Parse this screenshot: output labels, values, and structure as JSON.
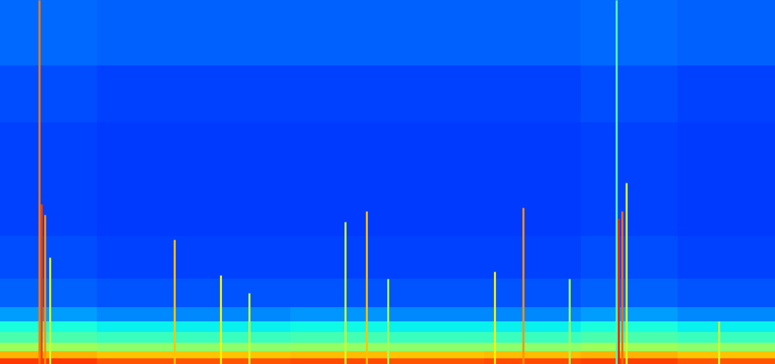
{
  "chart_data": {
    "type": "heatmap",
    "color": "jet",
    "tick_labels": false,
    "xlim": [
      0,
      1089
    ],
    "ylim": [
      0,
      512
    ],
    "color_range": [
      0,
      100
    ],
    "x_edges": [
      0,
      136,
      272,
      408,
      544,
      680,
      816,
      952,
      1089
    ],
    "y_edges": [
      0,
      8,
      18,
      30,
      45,
      60,
      80,
      120,
      180,
      260,
      340,
      420,
      512
    ],
    "cells": [
      [
        85,
        82,
        82,
        83,
        82,
        83,
        84,
        82
      ],
      [
        72,
        70,
        70,
        71,
        70,
        71,
        72,
        70
      ],
      [
        54,
        52,
        52,
        53,
        52,
        52,
        54,
        52
      ],
      [
        44,
        42,
        42,
        43,
        42,
        42,
        44,
        42
      ],
      [
        38,
        36,
        36,
        37,
        36,
        36,
        38,
        36
      ],
      [
        28,
        26,
        26,
        27,
        26,
        26,
        28,
        26
      ],
      [
        22,
        21,
        21,
        21,
        21,
        21,
        22,
        21
      ],
      [
        20,
        19,
        19,
        19,
        19,
        19,
        20,
        19
      ],
      [
        19,
        18,
        18,
        18,
        18,
        18,
        19,
        18
      ],
      [
        19,
        18,
        18,
        18,
        18,
        18,
        19,
        18
      ],
      [
        20,
        19,
        19,
        19,
        19,
        19,
        20,
        19
      ],
      [
        23,
        22,
        22,
        22,
        22,
        22,
        23,
        22
      ]
    ],
    "spikes": [
      {
        "x": 55,
        "top": 512,
        "value": 78
      },
      {
        "x": 58,
        "top": 225,
        "value": 85
      },
      {
        "x": 63,
        "top": 210,
        "value": 75
      },
      {
        "x": 70,
        "top": 150,
        "value": 60
      },
      {
        "x": 245,
        "top": 175,
        "value": 70
      },
      {
        "x": 310,
        "top": 125,
        "value": 65
      },
      {
        "x": 350,
        "top": 100,
        "value": 60
      },
      {
        "x": 485,
        "top": 200,
        "value": 60
      },
      {
        "x": 515,
        "top": 215,
        "value": 70
      },
      {
        "x": 545,
        "top": 120,
        "value": 55
      },
      {
        "x": 695,
        "top": 130,
        "value": 65
      },
      {
        "x": 735,
        "top": 220,
        "value": 75
      },
      {
        "x": 800,
        "top": 120,
        "value": 55
      },
      {
        "x": 866,
        "top": 512,
        "value": 45
      },
      {
        "x": 869,
        "top": 205,
        "value": 88
      },
      {
        "x": 874,
        "top": 215,
        "value": 80
      },
      {
        "x": 880,
        "top": 255,
        "value": 60
      },
      {
        "x": 1010,
        "top": 60,
        "value": 60
      }
    ]
  }
}
